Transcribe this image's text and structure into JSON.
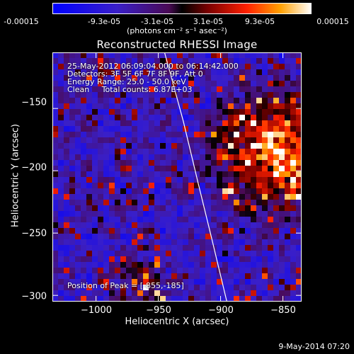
{
  "colorbar": {
    "ticks": [
      "-0.00015",
      "-9.3e-05",
      "-3.1e-05",
      "3.1e-05",
      "9.3e-05",
      "0.00015"
    ],
    "units": "(photons cm⁻² s⁻¹ asec⁻²)"
  },
  "chart_data": {
    "type": "heatmap",
    "title": "Reconstructed RHESSI Image",
    "xlabel": "Heliocentric X (arcsec)",
    "ylabel": "Heliocentric Y (arcsec)",
    "xlim": [
      -1035,
      -835
    ],
    "ylim": [
      -305,
      -105
    ],
    "x_ticks": [
      -1000,
      -950,
      -900,
      -850
    ],
    "y_ticks": [
      -150,
      -200,
      -250,
      -300
    ],
    "x_tick_labels": [
      "−1000",
      "−950",
      "−900",
      "−850"
    ],
    "y_tick_labels": [
      "−150",
      "−200",
      "−250",
      "−300"
    ],
    "colorbar_range": [
      -0.00015,
      0.00015
    ],
    "annotations": [
      "25-May-2012 06:09:04.000 to 06:14:42.000",
      "Detectors: 3F 5F 6F 7F 8F 9F, Att 0",
      "Energy Range: 25.0 - 50.0 keV",
      "Clean     Total counts: 6.87E+03"
    ],
    "peak_label": "Position of Peak = [-855,-185]",
    "peak": [
      -855,
      -185
    ],
    "limb_curve": [
      [
        -945,
        -105
      ],
      [
        -930,
        -160
      ],
      [
        -918,
        -210
      ],
      [
        -907,
        -255
      ],
      [
        -895,
        -305
      ]
    ]
  },
  "footer": "9-May-2014 07:20"
}
